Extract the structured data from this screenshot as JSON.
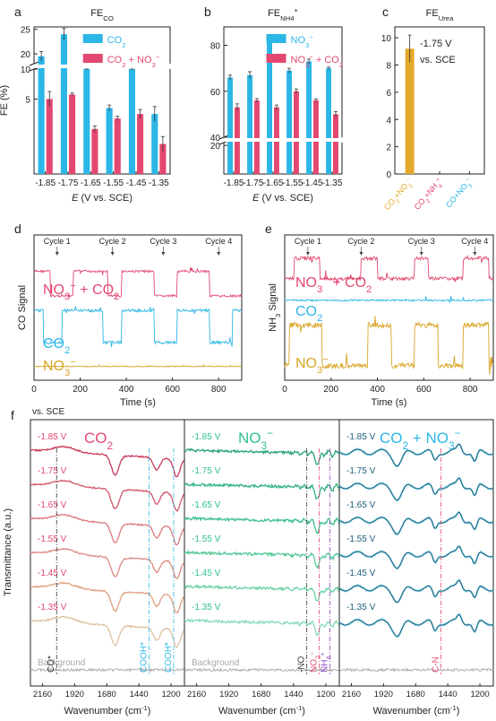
{
  "colors": {
    "co2": "#2bb6e6",
    "no3co2": "#e34870",
    "urea": "#e3a92b",
    "no3_trace": "#d9a628",
    "nh4_label": "#8a44c8",
    "cn_label": "#e34870",
    "no3_ir": "#2fc08f",
    "co2no3_ir": "#1e5f7a",
    "co2_ir_label": "#e34870",
    "background": "#a8a8a8"
  },
  "chart_data": [
    {
      "id": "a",
      "panel_letter": "a",
      "type": "bar",
      "title_main": "FE",
      "title_sub": "CO",
      "ylabel": "FE (%)",
      "xlabel_italic": "E",
      "xlabel_rest": " (V vs. SCE)",
      "categories": [
        "-1.85",
        "-1.75",
        "-1.65",
        "-1.55",
        "-1.45",
        "-1.35"
      ],
      "broken_axis": {
        "lower": [
          0,
          7
        ],
        "upper": [
          18,
          25.5
        ]
      },
      "yticks": [
        "5",
        "10",
        "20",
        "25"
      ],
      "legend": [
        {
          "html_main": "CO",
          "sub": "2",
          "color_key": "co2"
        },
        {
          "html_main": "CO",
          "sub": "2",
          "suffix": " + NO",
          "suffix_sub": "3",
          "suffix_sup": "−",
          "color_key": "no3co2"
        }
      ],
      "series": [
        {
          "name": "CO2",
          "color_key": "co2",
          "values": [
            19.5,
            24.0,
            7.8,
            4.4,
            7.5,
            4.0
          ],
          "errors": [
            1.0,
            1.2,
            0.5,
            0.2,
            0.4,
            0.5
          ]
        },
        {
          "name": "CO2 + NO3-",
          "color_key": "no3co2",
          "values": [
            5.0,
            5.3,
            3.0,
            3.7,
            4.0,
            2.0
          ],
          "errors": [
            0.5,
            0.1,
            0.2,
            0.15,
            0.3,
            0.5
          ]
        }
      ]
    },
    {
      "id": "b",
      "panel_letter": "b",
      "type": "bar",
      "title_main": "FE",
      "title_sub": "NH",
      "title_subsub": "4",
      "title_sup": "+",
      "ylabel": "",
      "xlabel_italic": "E",
      "xlabel_rest": " (V vs. SCE)",
      "categories": [
        "-1.85",
        "-1.75",
        "-1.65",
        "-1.55",
        "-1.45",
        "-1.35"
      ],
      "broken_axis": {
        "lower": [
          0,
          22
        ],
        "upper": [
          40,
          88
        ]
      },
      "yticks": [
        "20",
        "40",
        "60",
        "80"
      ],
      "legend": [
        {
          "html_main": "NO",
          "sub": "3",
          "sup": "−",
          "color_key": "co2"
        },
        {
          "html_main": "NO",
          "sub": "3",
          "sup": "−",
          "suffix": " + CO",
          "suffix_sub": "2",
          "color_key": "no3co2"
        }
      ],
      "series": [
        {
          "name": "NO3-",
          "color_key": "co2",
          "values": [
            66,
            67,
            83,
            69,
            73,
            70
          ],
          "errors": [
            1.0,
            1.5,
            0.8,
            1.0,
            1.0,
            0.5
          ]
        },
        {
          "name": "NO3- + CO2",
          "color_key": "no3co2",
          "values": [
            53,
            56,
            53,
            60,
            56,
            50
          ],
          "errors": [
            1.5,
            0.8,
            1.0,
            1.0,
            0.6,
            1.2
          ]
        }
      ]
    },
    {
      "id": "c",
      "panel_letter": "c",
      "type": "bar",
      "title_main": "FE",
      "title_sub": "Urea",
      "ylim": [
        0,
        10.8
      ],
      "yticks": [
        "0",
        "2",
        "4",
        "6",
        "8",
        "10"
      ],
      "annotation_line1": "-1.75 V",
      "annotation_line2": "vs. SCE",
      "categories": [
        "CO2+NO3-",
        "CO2+NH4+",
        "CO+NO3-"
      ],
      "category_labels": [
        {
          "a": "CO",
          "as": "2",
          "b": "+NO",
          "bs": "3",
          "bp": "−",
          "color_key": "urea"
        },
        {
          "a": "CO",
          "as": "2",
          "b": "+NH",
          "bs": "4",
          "bp": "+",
          "color_key": "no3co2"
        },
        {
          "a": "CO",
          "as": "",
          "b": "+NO",
          "bs": "3",
          "bp": "−",
          "color_key": "co2"
        }
      ],
      "values": [
        9.2,
        0,
        0
      ],
      "errors": [
        1.0,
        0,
        0
      ]
    },
    {
      "id": "d",
      "panel_letter": "d",
      "type": "line",
      "ylabel": "CO Signal",
      "xlabel": "Time (s)",
      "xlim": [
        0,
        900
      ],
      "xticks": [
        "0",
        "200",
        "400",
        "600",
        "800"
      ],
      "cycle_labels": [
        "Cycle 1",
        "Cycle 2",
        "Cycle 3",
        "Cycle 4"
      ],
      "cycle_times": [
        100,
        340,
        560,
        800
      ],
      "series": [
        {
          "name": "NO3- + CO2",
          "label_main": "NO",
          "label_sub": "3",
          "label_sup": "−",
          "label_suffix": " + CO",
          "label_suffix_sub": "2",
          "color_key": "no3co2",
          "baseline": 0.25,
          "on_level": 0.42,
          "pulses": [
            [
              70,
              170
            ],
            [
              320,
              380
            ],
            [
              520,
              620
            ],
            [
              760,
              900
            ]
          ]
        },
        {
          "name": "CO2",
          "label_main": "CO",
          "label_sub": "2",
          "color_key": "co2",
          "baseline": 0.52,
          "on_level": 0.74,
          "pulses": [
            [
              40,
              120
            ],
            [
              300,
              380
            ],
            [
              520,
              620
            ],
            [
              760,
              860
            ]
          ]
        },
        {
          "name": "NO3-",
          "label_main": "NO",
          "label_sub": "3",
          "label_sup": "−",
          "color_key": "no3_trace",
          "baseline": 0.905,
          "on_level": 0.905,
          "pulses": []
        }
      ]
    },
    {
      "id": "e",
      "panel_letter": "e",
      "type": "line",
      "ylabel": "NH",
      "ylabel_sub": "3",
      "ylabel_rest": " Signal",
      "xlabel": "Time (s)",
      "xlim": [
        0,
        900
      ],
      "xticks": [
        "0",
        "200",
        "400",
        "600",
        "800"
      ],
      "cycle_labels": [
        "Cycle 1",
        "Cycle 2",
        "Cycle 3",
        "Cycle 4"
      ],
      "cycle_times": [
        100,
        330,
        590,
        820
      ],
      "series": [
        {
          "name": "NO3- + CO2",
          "label_main": "NO",
          "label_sub": "3",
          "label_sup": "−",
          "label_suffix": " + CO",
          "label_suffix_sub": "2",
          "color_key": "no3co2",
          "baseline": 0.3,
          "on_level": 0.16,
          "pulses": [
            [
              40,
              150
            ],
            [
              330,
              400
            ],
            [
              560,
              620
            ],
            [
              770,
              880
            ]
          ]
        },
        {
          "name": "CO2",
          "label_main": "CO",
          "label_sub": "2",
          "color_key": "co2",
          "baseline": 0.45,
          "on_level": 0.45,
          "pulses": []
        },
        {
          "name": "NO3-",
          "label_main": "NO",
          "label_sub": "3",
          "label_sup": "−",
          "color_key": "no3_trace",
          "baseline": 0.9,
          "on_level": 0.62,
          "pulses": [
            [
              20,
              160
            ],
            [
              360,
              460
            ],
            [
              560,
              660
            ],
            [
              770,
              880
            ]
          ]
        }
      ]
    },
    {
      "id": "f",
      "panel_letter": "f",
      "type": "line",
      "corner_label": "vs. SCE",
      "ylabel": "Transmittance (a.u.)",
      "xlabel": "Wavenumber (cm",
      "xlabel_sup": "-1",
      "xlabel_end": ")",
      "xticks": [
        "2160",
        "1920",
        "1680",
        "1440",
        "1200"
      ],
      "xticks_right": [
        "2160",
        "1920",
        "1680",
        "1440",
        "1200"
      ],
      "potentials": [
        "-1.85 V",
        "-1.75 V",
        "-1.65 V",
        "-1.55 V",
        "-1.45 V",
        "-1.35 V"
      ],
      "background_label": "Background",
      "subpanels": [
        {
          "title_main": "CO",
          "title_sub": "2",
          "title_color_key": "co2_ir_label",
          "label_color_key": "no3co2",
          "trace_colors": [
            "#c83a5a",
            "#d2566c",
            "#da7a7e",
            "#de8a82",
            "#e0a080",
            "#dfc0a0"
          ],
          "markers": [
            {
              "text": "CO*",
              "color": "#333333",
              "x_frac": 0.17
            },
            {
              "text": "COOH*",
              "color": "#2bb6e6",
              "x_frac": 0.77
            },
            {
              "text": "COOH*",
              "color": "#2bb6e6",
              "x_frac": 0.93
            }
          ]
        },
        {
          "title_main": "NO",
          "title_sub": "3",
          "title_sup": "−",
          "title_color_key": "no3_ir",
          "label_color_key": "no3_ir",
          "trace_colors": [
            "#26a377",
            "#30b282",
            "#3fc08d",
            "#55c897",
            "#6ad1a3",
            "#86dbb6"
          ],
          "markers": [
            {
              "text": "-NO",
              "color": "#333333",
              "x_frac": 0.79
            },
            {
              "text": "NO",
              "sub": "2",
              "sup": "−",
              "color": "#e34870",
              "x_frac": 0.87
            },
            {
              "text": "NH",
              "sub": "4",
              "sup": "+",
              "color": "#8a44c8",
              "x_frac": 0.94
            }
          ]
        },
        {
          "title_main": "CO",
          "title_sub": "2",
          "title_mid": " + NO",
          "title_mid_sub": "3",
          "title_sup": "−",
          "title_color_key": "co2",
          "label_color_key": "co2no3_ir",
          "trace_colors": [
            "#1e5f7a",
            "#1e5f7a",
            "#1e5f7a",
            "#1e5f7a",
            "#1e5f7a",
            "#1e5f7a"
          ],
          "markers": [
            {
              "text": "C-N",
              "color": "#e34870",
              "x_frac": 0.66
            }
          ]
        }
      ]
    }
  ]
}
